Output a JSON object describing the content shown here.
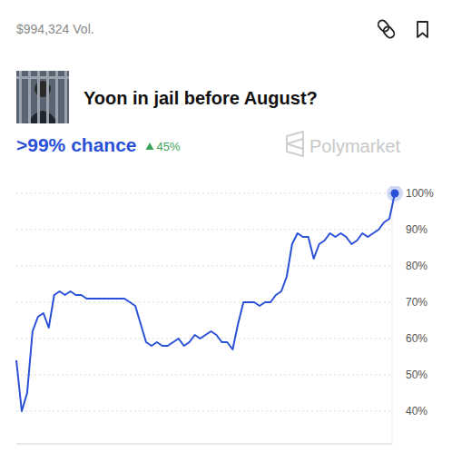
{
  "header": {
    "volume": "$994,324 Vol.",
    "title": "Yoon in jail before August?",
    "chance": ">99% chance",
    "change": "45%",
    "brand": "Polymarket"
  },
  "chart_data": {
    "type": "line",
    "color": "#2b50d8",
    "grid": true,
    "tick_labels": "y",
    "ylim": [
      31,
      102
    ],
    "yticks": [
      {
        "value": 40,
        "label": "40%"
      },
      {
        "value": 50,
        "label": "50%"
      },
      {
        "value": 60,
        "label": "60%"
      },
      {
        "value": 70,
        "label": "70%"
      },
      {
        "value": 80,
        "label": "80%"
      },
      {
        "value": 90,
        "label": "90%"
      },
      {
        "value": 100,
        "label": "100%"
      }
    ],
    "values": [
      54,
      40,
      45,
      62,
      66,
      67,
      63,
      72,
      73,
      72,
      73,
      72,
      72,
      71,
      71,
      71,
      71,
      71,
      71,
      71,
      71,
      70,
      69,
      64,
      59,
      58,
      59,
      58,
      58,
      59,
      60,
      58,
      59,
      61,
      60,
      61,
      62,
      61,
      59,
      59,
      57,
      64,
      70,
      70,
      70,
      69,
      70,
      70,
      72,
      73,
      77,
      86,
      89,
      88,
      88,
      82,
      86,
      87,
      89,
      88,
      89,
      88,
      86,
      87,
      89,
      88,
      89,
      90,
      92,
      93,
      100
    ]
  }
}
